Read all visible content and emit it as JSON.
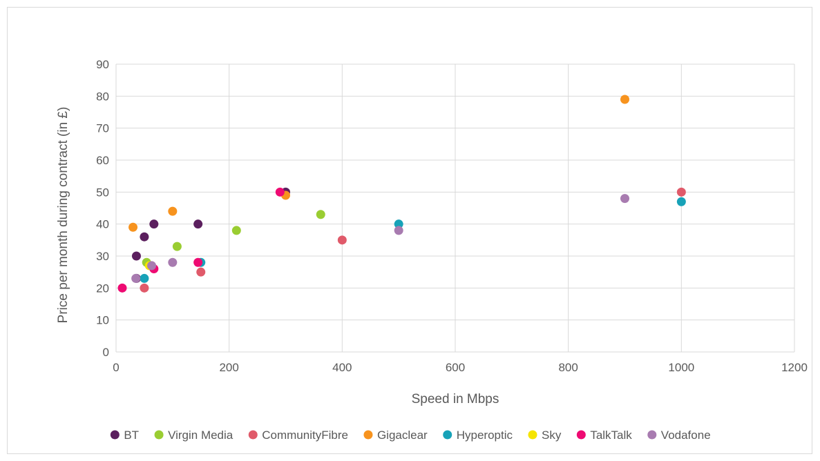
{
  "chart_data": {
    "type": "scatter",
    "title": "",
    "xlabel": "Speed in Mbps",
    "ylabel": "Price per month during contract (in £)",
    "xlim": [
      0,
      1200
    ],
    "ylim": [
      0,
      90
    ],
    "xticks": [
      0,
      200,
      400,
      600,
      800,
      1000,
      1200
    ],
    "yticks": [
      0,
      10,
      20,
      30,
      40,
      50,
      60,
      70,
      80,
      90
    ],
    "grid": "vertical and horizontal",
    "legend_position": "bottom",
    "series": [
      {
        "name": "BT",
        "color": "#5b1f5e",
        "points": [
          [
            36,
            30
          ],
          [
            50,
            36
          ],
          [
            67,
            40
          ],
          [
            145,
            40
          ],
          [
            300,
            50
          ],
          [
            36,
            23
          ]
        ]
      },
      {
        "name": "Virgin Media",
        "color": "#9acd32",
        "points": [
          [
            54,
            28
          ],
          [
            108,
            33
          ],
          [
            213,
            38
          ],
          [
            362,
            43
          ]
        ]
      },
      {
        "name": "CommunityFibre",
        "color": "#e05a6a",
        "points": [
          [
            50,
            20
          ],
          [
            150,
            25
          ],
          [
            400,
            35
          ],
          [
            1000,
            50
          ]
        ]
      },
      {
        "name": "Gigaclear",
        "color": "#f7931e",
        "points": [
          [
            30,
            39
          ],
          [
            100,
            44
          ],
          [
            300,
            49
          ],
          [
            900,
            79
          ]
        ]
      },
      {
        "name": "Hyperoptic",
        "color": "#17a2b8",
        "points": [
          [
            50,
            23
          ],
          [
            150,
            28
          ],
          [
            500,
            40
          ],
          [
            1000,
            47
          ]
        ]
      },
      {
        "name": "Sky",
        "color": "#f5e400",
        "points": [
          [
            59,
            27
          ]
        ]
      },
      {
        "name": "TalkTalk",
        "color": "#ee0a72",
        "points": [
          [
            11,
            20
          ],
          [
            67,
            26
          ],
          [
            145,
            28
          ],
          [
            290,
            50
          ]
        ]
      },
      {
        "name": "Vodafone",
        "color": "#a87bb0",
        "points": [
          [
            35,
            23
          ],
          [
            63,
            27
          ],
          [
            100,
            28
          ],
          [
            500,
            38
          ],
          [
            900,
            48
          ]
        ]
      }
    ]
  }
}
